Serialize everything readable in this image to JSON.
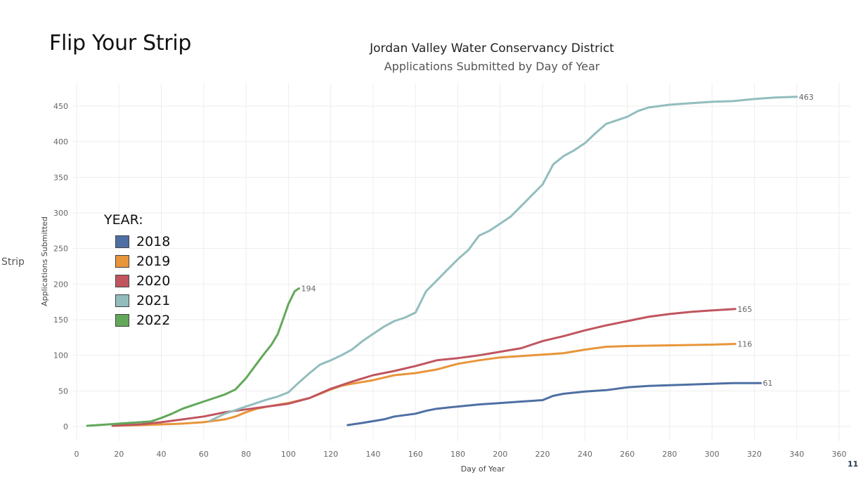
{
  "slide": {
    "title": "Flip Your Strip",
    "side_label": "Strip",
    "page_number": "11"
  },
  "chart_data": {
    "type": "line",
    "title": "Jordan Valley Water Conservancy District",
    "subtitle": "Applications Submitted by Day of Year",
    "xlabel": "Day of Year",
    "ylabel": "Applications Submitted",
    "xlim": [
      0,
      360
    ],
    "ylim": [
      0,
      460
    ],
    "x_ticks": [
      0,
      20,
      40,
      60,
      80,
      100,
      120,
      140,
      160,
      180,
      200,
      220,
      240,
      260,
      280,
      300,
      320,
      340,
      360
    ],
    "y_ticks": [
      0,
      50,
      100,
      150,
      200,
      250,
      300,
      350,
      400,
      450
    ],
    "grid": true,
    "legend": {
      "title": "YEAR:",
      "position": "left"
    },
    "series": [
      {
        "name": "2018",
        "color": "#4e6fa3",
        "end_label": "61",
        "points": [
          [
            128,
            2
          ],
          [
            135,
            5
          ],
          [
            145,
            10
          ],
          [
            150,
            14
          ],
          [
            160,
            18
          ],
          [
            165,
            22
          ],
          [
            170,
            25
          ],
          [
            180,
            28
          ],
          [
            190,
            31
          ],
          [
            200,
            33
          ],
          [
            210,
            35
          ],
          [
            220,
            37
          ],
          [
            225,
            43
          ],
          [
            230,
            46
          ],
          [
            240,
            49
          ],
          [
            250,
            51
          ],
          [
            260,
            55
          ],
          [
            270,
            57
          ],
          [
            280,
            58
          ],
          [
            290,
            59
          ],
          [
            300,
            60
          ],
          [
            310,
            61
          ],
          [
            323,
            61
          ]
        ]
      },
      {
        "name": "2019",
        "color": "#e8953a",
        "end_label": "116",
        "points": [
          [
            17,
            1
          ],
          [
            30,
            2
          ],
          [
            40,
            3
          ],
          [
            50,
            4
          ],
          [
            60,
            6
          ],
          [
            70,
            10
          ],
          [
            75,
            14
          ],
          [
            80,
            20
          ],
          [
            85,
            25
          ],
          [
            90,
            28
          ],
          [
            100,
            33
          ],
          [
            110,
            40
          ],
          [
            120,
            52
          ],
          [
            125,
            57
          ],
          [
            130,
            60
          ],
          [
            140,
            65
          ],
          [
            150,
            72
          ],
          [
            160,
            75
          ],
          [
            170,
            80
          ],
          [
            180,
            88
          ],
          [
            190,
            93
          ],
          [
            200,
            97
          ],
          [
            210,
            99
          ],
          [
            220,
            101
          ],
          [
            230,
            103
          ],
          [
            240,
            108
          ],
          [
            250,
            112
          ],
          [
            260,
            113
          ],
          [
            280,
            114
          ],
          [
            300,
            115
          ],
          [
            311,
            116
          ]
        ]
      },
      {
        "name": "2020",
        "color": "#c0555f",
        "end_label": "165",
        "points": [
          [
            17,
            1
          ],
          [
            30,
            3
          ],
          [
            40,
            6
          ],
          [
            50,
            10
          ],
          [
            60,
            14
          ],
          [
            65,
            17
          ],
          [
            70,
            20
          ],
          [
            80,
            24
          ],
          [
            90,
            28
          ],
          [
            100,
            32
          ],
          [
            110,
            40
          ],
          [
            120,
            53
          ],
          [
            130,
            63
          ],
          [
            140,
            72
          ],
          [
            150,
            78
          ],
          [
            160,
            85
          ],
          [
            170,
            93
          ],
          [
            180,
            96
          ],
          [
            190,
            100
          ],
          [
            200,
            105
          ],
          [
            210,
            110
          ],
          [
            220,
            120
          ],
          [
            230,
            127
          ],
          [
            240,
            135
          ],
          [
            250,
            142
          ],
          [
            260,
            148
          ],
          [
            270,
            154
          ],
          [
            280,
            158
          ],
          [
            290,
            161
          ],
          [
            300,
            163
          ],
          [
            311,
            165
          ]
        ]
      },
      {
        "name": "2021",
        "color": "#93bdbd",
        "end_label": "463",
        "points": [
          [
            63,
            8
          ],
          [
            70,
            18
          ],
          [
            80,
            28
          ],
          [
            90,
            38
          ],
          [
            95,
            42
          ],
          [
            100,
            48
          ],
          [
            105,
            62
          ],
          [
            110,
            75
          ],
          [
            115,
            87
          ],
          [
            120,
            93
          ],
          [
            125,
            100
          ],
          [
            130,
            108
          ],
          [
            135,
            120
          ],
          [
            140,
            130
          ],
          [
            145,
            140
          ],
          [
            150,
            148
          ],
          [
            155,
            153
          ],
          [
            160,
            160
          ],
          [
            165,
            190
          ],
          [
            170,
            205
          ],
          [
            175,
            220
          ],
          [
            180,
            235
          ],
          [
            185,
            248
          ],
          [
            190,
            268
          ],
          [
            195,
            275
          ],
          [
            200,
            285
          ],
          [
            205,
            295
          ],
          [
            210,
            310
          ],
          [
            215,
            325
          ],
          [
            220,
            340
          ],
          [
            225,
            368
          ],
          [
            230,
            380
          ],
          [
            235,
            388
          ],
          [
            240,
            398
          ],
          [
            245,
            412
          ],
          [
            250,
            425
          ],
          [
            255,
            430
          ],
          [
            260,
            435
          ],
          [
            265,
            443
          ],
          [
            270,
            448
          ],
          [
            280,
            452
          ],
          [
            290,
            454
          ],
          [
            300,
            456
          ],
          [
            310,
            457
          ],
          [
            320,
            460
          ],
          [
            330,
            462
          ],
          [
            340,
            463
          ]
        ]
      },
      {
        "name": "2022",
        "color": "#62a85a",
        "end_label": "194",
        "points": [
          [
            5,
            1
          ],
          [
            10,
            2
          ],
          [
            15,
            3
          ],
          [
            20,
            4
          ],
          [
            25,
            5
          ],
          [
            30,
            6
          ],
          [
            35,
            7
          ],
          [
            40,
            12
          ],
          [
            45,
            18
          ],
          [
            50,
            25
          ],
          [
            55,
            30
          ],
          [
            60,
            35
          ],
          [
            65,
            40
          ],
          [
            70,
            45
          ],
          [
            75,
            52
          ],
          [
            80,
            68
          ],
          [
            85,
            88
          ],
          [
            88,
            100
          ],
          [
            92,
            115
          ],
          [
            95,
            130
          ],
          [
            98,
            155
          ],
          [
            100,
            172
          ],
          [
            103,
            190
          ],
          [
            105,
            194
          ]
        ]
      }
    ]
  }
}
